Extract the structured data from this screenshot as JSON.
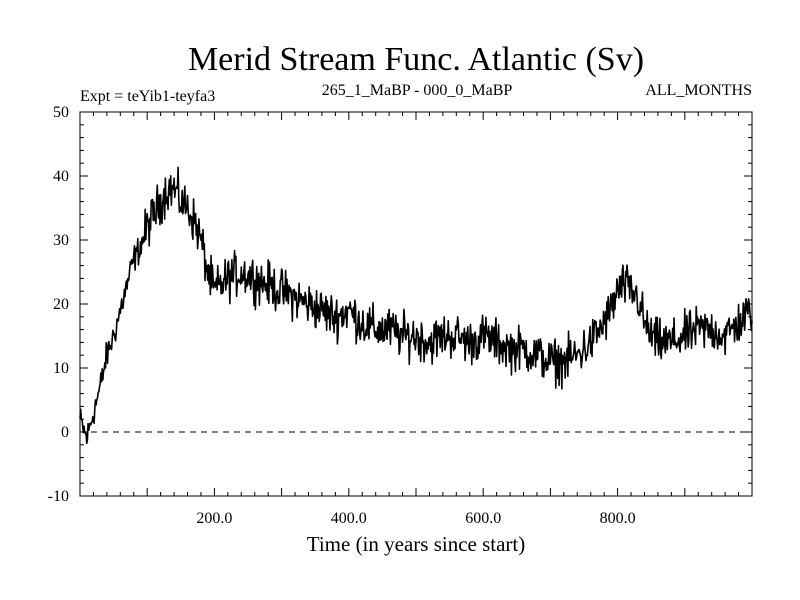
{
  "chart_data": {
    "type": "line",
    "title": "Merid Stream Func. Atlantic (Sv)",
    "subtitle_left": "Expt = teYib1-teyfa3",
    "subtitle_center": "265_1_MaBP - 000_0_MaBP",
    "subtitle_right": "ALL_MONTHS",
    "xlabel": "Time (in years since start)",
    "ylabel": "",
    "xlim": [
      0,
      1000
    ],
    "ylim": [
      -10,
      50
    ],
    "x_ticks": [
      {
        "value": 200,
        "label": "200.0"
      },
      {
        "value": 400,
        "label": "400.0"
      },
      {
        "value": 600,
        "label": "600.0"
      },
      {
        "value": 800,
        "label": "800.0"
      }
    ],
    "y_ticks": [
      {
        "value": -10,
        "label": "-10"
      },
      {
        "value": 0,
        "label": "0"
      },
      {
        "value": 10,
        "label": "10"
      },
      {
        "value": 20,
        "label": "20"
      },
      {
        "value": 30,
        "label": "30"
      },
      {
        "value": 40,
        "label": "40"
      },
      {
        "value": 50,
        "label": "50"
      }
    ],
    "reference_line": {
      "y": 0,
      "style": "dashed"
    },
    "series": [
      {
        "name": "Merid Stream Func. Atlantic",
        "color": "#000000",
        "x": [
          0,
          10,
          20,
          30,
          40,
          50,
          60,
          70,
          80,
          90,
          100,
          110,
          120,
          130,
          140,
          150,
          160,
          170,
          180,
          190,
          200,
          220,
          240,
          260,
          280,
          300,
          320,
          340,
          360,
          380,
          400,
          420,
          440,
          460,
          480,
          500,
          520,
          540,
          560,
          580,
          600,
          620,
          640,
          660,
          680,
          700,
          720,
          740,
          760,
          780,
          790,
          800,
          810,
          820,
          830,
          840,
          850,
          860,
          880,
          900,
          920,
          940,
          960,
          980,
          1000
        ],
        "values": [
          2,
          -1,
          3,
          7,
          12,
          15,
          19,
          23,
          27,
          29,
          32,
          34,
          36,
          38,
          38,
          36,
          35,
          33,
          30,
          25,
          22,
          24,
          25,
          24,
          23,
          22,
          21,
          20,
          19,
          18,
          19,
          17,
          16,
          16,
          15,
          15,
          14,
          15,
          15,
          14,
          15,
          14,
          13,
          13,
          12,
          11,
          11,
          12,
          14,
          17,
          19,
          22,
          23,
          22,
          21,
          17,
          15,
          14,
          14,
          15,
          16,
          16,
          15,
          17,
          19
        ]
      }
    ]
  }
}
